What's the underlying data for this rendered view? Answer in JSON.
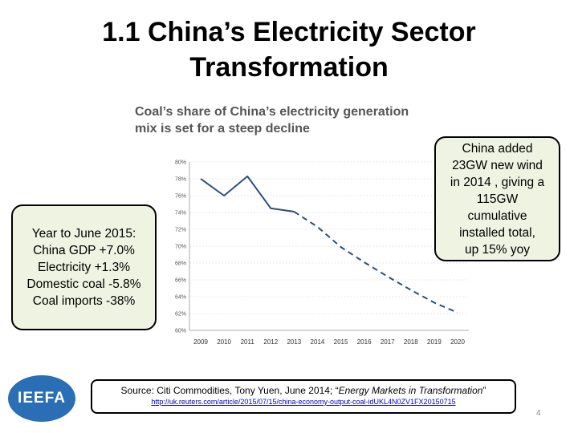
{
  "slide": {
    "title_line1": "1.1 China’s Electricity Sector",
    "title_line2": "Transformation",
    "page_number": "4"
  },
  "chart_title": {
    "line1": "Coal’s share of China’s electricity generation",
    "line2": "mix is set for a steep decline"
  },
  "left_box": {
    "lines": [
      "Year to June 2015:",
      "China GDP +7.0%",
      "Electricity +1.3%",
      "Domestic coal -5.8%",
      "Coal imports -38%"
    ]
  },
  "right_box": {
    "lines": [
      "China added",
      "23GW new wind",
      "in 2014 , giving a",
      "115GW",
      "cumulative",
      "installed total,",
      "up 15% yoy"
    ]
  },
  "source": {
    "prefix": "Source: Citi Commodities, Tony Yuen, June 2014; “",
    "italic": "Energy Markets in Transformation",
    "suffix": "”",
    "url": "http://uk.reuters.com/article/2015/07/15/china-economy-output-coal-idUKL4N0ZV1FX20150715"
  },
  "logo": {
    "text": "IEEFA",
    "color": "#2a6fb5"
  },
  "chart_data": {
    "type": "line",
    "title": "Coal’s share of China’s electricity generation mix is set for a steep decline",
    "x": [
      "2009",
      "2010",
      "2011",
      "2012",
      "2013",
      "2014",
      "2015",
      "2016",
      "2017",
      "2018",
      "2019",
      "2020"
    ],
    "series": [
      {
        "style": "solid",
        "values": [
          78,
          76,
          78.3,
          74.5,
          74.1,
          null,
          null,
          null,
          null,
          null,
          null,
          null
        ]
      },
      {
        "style": "dashed",
        "values": [
          null,
          null,
          null,
          null,
          74.1,
          72.3,
          69.9,
          68.1,
          66.4,
          64.8,
          63.3,
          62.1
        ]
      }
    ],
    "y_ticks": [
      "80%",
      "78%",
      "76%",
      "74%",
      "72%",
      "70%",
      "68%",
      "66%",
      "64%",
      "62%",
      "60%"
    ],
    "ylim": [
      60,
      80
    ],
    "grid": true,
    "line_color": "#2e4e7e"
  }
}
